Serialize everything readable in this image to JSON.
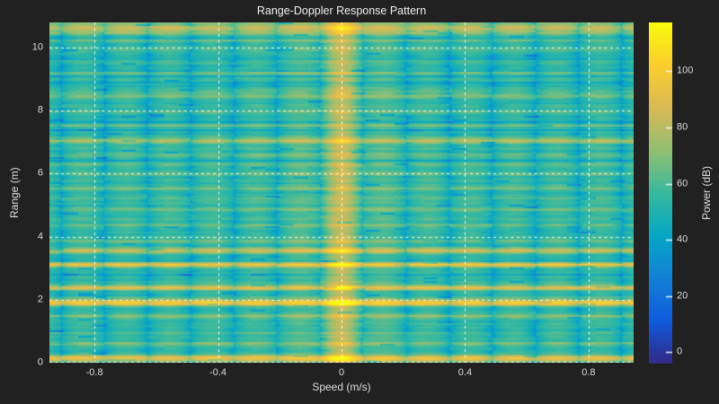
{
  "figure": {
    "background": "#212121",
    "title_color": "#f0f0f0",
    "label_color": "#dedede",
    "tick_color": "#dcdcdc",
    "grid_color": "#ffffff"
  },
  "chart_data": {
    "type": "heatmap",
    "title": "Range-Doppler Response Pattern",
    "xlabel": "Speed (m/s)",
    "ylabel": "Range (m)",
    "x_range": [
      -0.945,
      0.945
    ],
    "y_range": [
      0,
      10.8
    ],
    "x_ticks": [
      -0.8,
      -0.4,
      0,
      0.4,
      0.8
    ],
    "x_tick_labels": [
      "-0.8",
      "-0.4",
      "0",
      "0.4",
      "0.8"
    ],
    "y_ticks": [
      0,
      2,
      4,
      6,
      8,
      10
    ],
    "y_tick_labels": [
      "0",
      "2",
      "4",
      "6",
      "8",
      "10"
    ],
    "grid": {
      "on": true,
      "style": "dashed",
      "layer": "top"
    },
    "colorbar": {
      "label": "Power (dB)",
      "ticks": [
        0,
        20,
        40,
        60,
        80,
        100
      ],
      "tick_labels": [
        "0",
        "20",
        "40",
        "60",
        "80",
        "100"
      ],
      "domain_db": [
        -4,
        117.3
      ]
    },
    "colormap": {
      "name": "parula",
      "stops": [
        [
          0.0,
          "#352a87"
        ],
        [
          0.125,
          "#0f5cdd"
        ],
        [
          0.25,
          "#1481d6"
        ],
        [
          0.375,
          "#06a7c6"
        ],
        [
          0.5,
          "#38b99e"
        ],
        [
          0.625,
          "#92bf73"
        ],
        [
          0.75,
          "#d9ba56"
        ],
        [
          0.875,
          "#fcce2e"
        ],
        [
          1.0,
          "#f9fb0e"
        ]
      ]
    },
    "response": {
      "description": "Range-Doppler response: mainlobe column at 0 m/s, periodic Doppler sidelobe blobs separated by narrow nulls, horizontal bright bands at target/sidelobe ranges over a teal noise floor.",
      "background_db": 56,
      "noise_db": 5,
      "mainlobe": {
        "speed": 0,
        "gain_db": 20,
        "width_mps": 0.05
      },
      "shoulder": {
        "gain_db": 6,
        "width_mps": 0.2
      },
      "sidelobes": {
        "period_mps": 0.1395,
        "null_depth_db_min": 8,
        "null_depth_db_max": 30
      },
      "range_bands": [
        [
          0.14,
          0.1,
          42
        ],
        [
          0.6,
          0.06,
          14
        ],
        [
          0.95,
          0.05,
          9
        ],
        [
          1.48,
          0.06,
          18
        ],
        [
          1.91,
          0.11,
          47
        ],
        [
          2.39,
          0.08,
          34
        ],
        [
          3.1,
          0.08,
          38
        ],
        [
          3.56,
          0.08,
          34
        ],
        [
          3.85,
          0.06,
          16
        ],
        [
          4.35,
          0.06,
          12
        ],
        [
          4.85,
          0.07,
          14
        ],
        [
          5.2,
          0.05,
          10
        ],
        [
          5.55,
          0.06,
          12
        ],
        [
          6.0,
          0.05,
          9
        ],
        [
          6.3,
          0.07,
          12
        ],
        [
          6.6,
          0.06,
          10
        ],
        [
          7.05,
          0.09,
          24
        ],
        [
          7.5,
          0.05,
          11
        ],
        [
          7.95,
          0.06,
          10
        ],
        [
          8.45,
          0.07,
          14
        ],
        [
          8.6,
          0.05,
          8
        ],
        [
          9.2,
          0.07,
          12
        ],
        [
          9.6,
          0.05,
          8
        ],
        [
          9.95,
          0.06,
          11
        ],
        [
          10.2,
          0.06,
          13
        ],
        [
          10.62,
          0.16,
          31
        ]
      ],
      "num_range_bins": 200,
      "seed": 11
    }
  }
}
